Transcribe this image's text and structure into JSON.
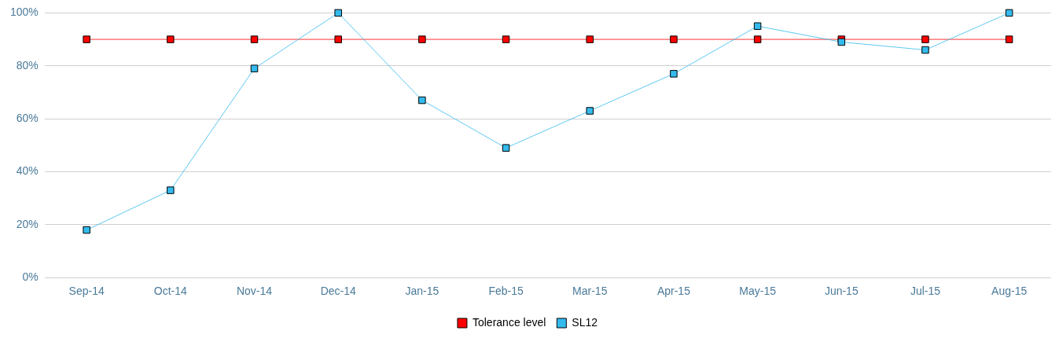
{
  "chart_data": {
    "type": "line",
    "categories": [
      "Sep-14",
      "Oct-14",
      "Nov-14",
      "Dec-14",
      "Jan-15",
      "Feb-15",
      "Mar-15",
      "Apr-15",
      "May-15",
      "Jun-15",
      "Jul-15",
      "Aug-15"
    ],
    "series": [
      {
        "name": "Tolerance level",
        "color": "#ff0000",
        "values": [
          90,
          90,
          90,
          90,
          90,
          90,
          90,
          90,
          90,
          90,
          90,
          90
        ]
      },
      {
        "name": "SL12",
        "color": "#33bbee",
        "values": [
          18,
          33,
          79,
          100,
          67,
          49,
          63,
          77,
          95,
          89,
          86,
          100
        ]
      }
    ],
    "ylim": [
      0,
      100
    ],
    "yticks": [
      {
        "value": 0,
        "label": "0%"
      },
      {
        "value": 20,
        "label": "20%"
      },
      {
        "value": 40,
        "label": "40%"
      },
      {
        "value": 60,
        "label": "60%"
      },
      {
        "value": 80,
        "label": "80%"
      },
      {
        "value": 100,
        "label": "100%"
      }
    ],
    "grid": "y",
    "legend": "bottom",
    "marker": "square",
    "line_style": "solid"
  }
}
